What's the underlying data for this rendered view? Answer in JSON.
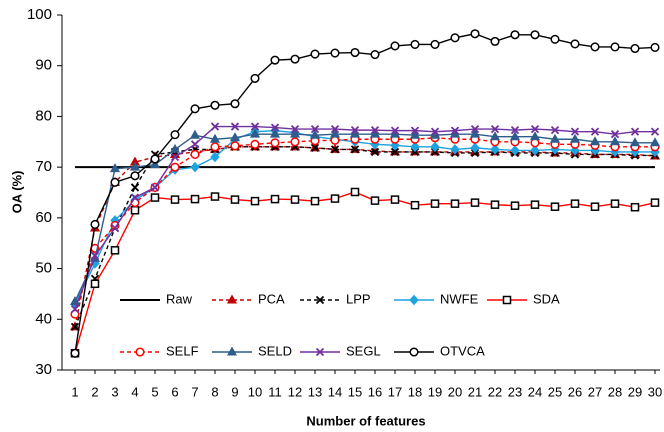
{
  "chart_data": {
    "type": "line",
    "x_label": "Number of features",
    "y_label": "OA (%)",
    "x": [
      1,
      2,
      3,
      4,
      5,
      6,
      7,
      8,
      9,
      10,
      11,
      12,
      13,
      14,
      15,
      16,
      17,
      18,
      19,
      20,
      21,
      22,
      23,
      24,
      25,
      26,
      27,
      28,
      29,
      30
    ],
    "xlim": [
      0.35,
      30.25
    ],
    "ylim": [
      30,
      100
    ],
    "yticks": [
      30,
      40,
      50,
      60,
      70,
      80,
      90,
      100
    ],
    "series": [
      {
        "name": "Raw",
        "color": "#000000",
        "dashed": false,
        "marker": "none",
        "values": [
          70,
          70,
          70,
          70,
          70,
          70,
          70,
          70,
          70,
          70,
          70,
          70,
          70,
          70,
          70,
          70,
          70,
          70,
          70,
          70,
          70,
          70,
          70,
          70,
          70,
          70,
          70,
          70,
          70,
          70
        ]
      },
      {
        "name": "PCA",
        "color": "#c00000",
        "dashed": true,
        "marker": "triangle",
        "values": [
          38.5,
          58,
          67,
          71,
          72,
          72.5,
          73,
          73.5,
          74,
          74,
          74,
          74,
          73.8,
          73.5,
          73.5,
          73.2,
          73,
          73,
          73,
          73,
          73,
          73,
          73,
          73,
          72.8,
          72.8,
          72.5,
          72.5,
          72.5,
          72.2
        ]
      },
      {
        "name": "LPP",
        "color": "#000000",
        "dashed": true,
        "marker": "x",
        "values": [
          38.5,
          48,
          58,
          66,
          72.5,
          73,
          73.5,
          73.5,
          74,
          74,
          74,
          74,
          73.8,
          73.5,
          73.5,
          73,
          73,
          73,
          73,
          72.8,
          72.8,
          73,
          72.8,
          72.8,
          72.8,
          72.5,
          72.5,
          72.5,
          72.3,
          72.3
        ]
      },
      {
        "name": "NWFE",
        "color": "#1fa2e0",
        "dashed": false,
        "marker": "diamond",
        "values": [
          43,
          51,
          59.5,
          63.5,
          66,
          69.5,
          70,
          72,
          75.5,
          77,
          77.2,
          76.8,
          76,
          75.5,
          75,
          74.5,
          74.3,
          74,
          74,
          73.5,
          73.8,
          73.5,
          73.3,
          73.3,
          73.5,
          73.3,
          73.3,
          73,
          73,
          73
        ]
      },
      {
        "name": "SDA",
        "color": "#ff0000",
        "dashed": false,
        "marker": "square",
        "values": [
          33.3,
          47,
          53.6,
          61.5,
          64,
          63.6,
          63.7,
          64.2,
          63.6,
          63.3,
          63.7,
          63.6,
          63.3,
          63.8,
          65.1,
          63.4,
          63.6,
          62.5,
          62.8,
          62.8,
          63,
          62.6,
          62.4,
          62.6,
          62.2,
          62.8,
          62.2,
          62.8,
          62.1,
          63
        ]
      },
      {
        "name": "SELF",
        "color": "#ff0000",
        "dashed": true,
        "marker": "circle",
        "values": [
          41,
          54,
          58.5,
          63,
          66,
          70,
          72.5,
          74,
          74.2,
          74.5,
          74.8,
          75,
          75.2,
          75.3,
          75.5,
          75.5,
          75.5,
          75.5,
          75.8,
          75.5,
          75.5,
          75,
          75,
          74.8,
          74.5,
          74.5,
          74.3,
          74,
          74,
          74
        ]
      },
      {
        "name": "SELD",
        "color": "#2e5d8c",
        "dashed": false,
        "marker": "triangle",
        "values": [
          43.5,
          52,
          69.7,
          70,
          70.5,
          73.5,
          76.3,
          75.5,
          75.8,
          76.5,
          76.5,
          76.5,
          76.3,
          76.5,
          76.5,
          76.5,
          76.5,
          76.3,
          76.3,
          76.5,
          76.5,
          76,
          76,
          76,
          75.5,
          75.5,
          75,
          75,
          74.8,
          74.8
        ]
      },
      {
        "name": "SEGL",
        "color": "#7030a0",
        "dashed": false,
        "marker": "x",
        "values": [
          42,
          52.5,
          58,
          64,
          66,
          72,
          74.5,
          78,
          78,
          78,
          77.8,
          77.5,
          77.5,
          77.5,
          77.3,
          77.3,
          77.2,
          77.2,
          77,
          77.2,
          77.5,
          77.5,
          77.3,
          77.5,
          77.3,
          77,
          77,
          76.5,
          77,
          77
        ]
      },
      {
        "name": "OTVCA",
        "color": "#000000",
        "dashed": false,
        "marker": "circle",
        "values": [
          33.3,
          58.7,
          67,
          68.3,
          71.6,
          76.4,
          81.5,
          82.2,
          82.5,
          87.5,
          91.1,
          91.3,
          92.3,
          92.5,
          92.6,
          92.2,
          93.9,
          94.2,
          94.2,
          95.5,
          96.3,
          94.8,
          96.1,
          96.1,
          95.2,
          94.3,
          93.7,
          93.7,
          93.4,
          93.6
        ]
      }
    ]
  }
}
